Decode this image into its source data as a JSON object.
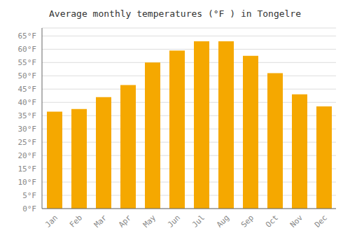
{
  "chart_data": {
    "type": "bar",
    "title": "Average monthly temperatures (°F ) in Tongelre",
    "categories": [
      "Jan",
      "Feb",
      "Mar",
      "Apr",
      "May",
      "Jun",
      "Jul",
      "Aug",
      "Sep",
      "Oct",
      "Nov",
      "Dec"
    ],
    "values": [
      36.5,
      37.5,
      42.0,
      46.5,
      55.0,
      59.5,
      63.0,
      63.0,
      57.5,
      51.0,
      43.0,
      38.5
    ],
    "color": "#F5A800",
    "ylim": [
      0,
      68
    ],
    "yticks": [
      {
        "value": 0,
        "label": "0°F"
      },
      {
        "value": 5,
        "label": "5°F"
      },
      {
        "value": 10,
        "label": "10°F"
      },
      {
        "value": 15,
        "label": "15°F"
      },
      {
        "value": 20,
        "label": "20°F"
      },
      {
        "value": 25,
        "label": "25°F"
      },
      {
        "value": 30,
        "label": "30°F"
      },
      {
        "value": 35,
        "label": "35°F"
      },
      {
        "value": 40,
        "label": "40°F"
      },
      {
        "value": 45,
        "label": "45°F"
      },
      {
        "value": 50,
        "label": "50°F"
      },
      {
        "value": 55,
        "label": "55°F"
      },
      {
        "value": 60,
        "label": "60°F"
      },
      {
        "value": 65,
        "label": "65°F"
      }
    ],
    "grid": true
  }
}
